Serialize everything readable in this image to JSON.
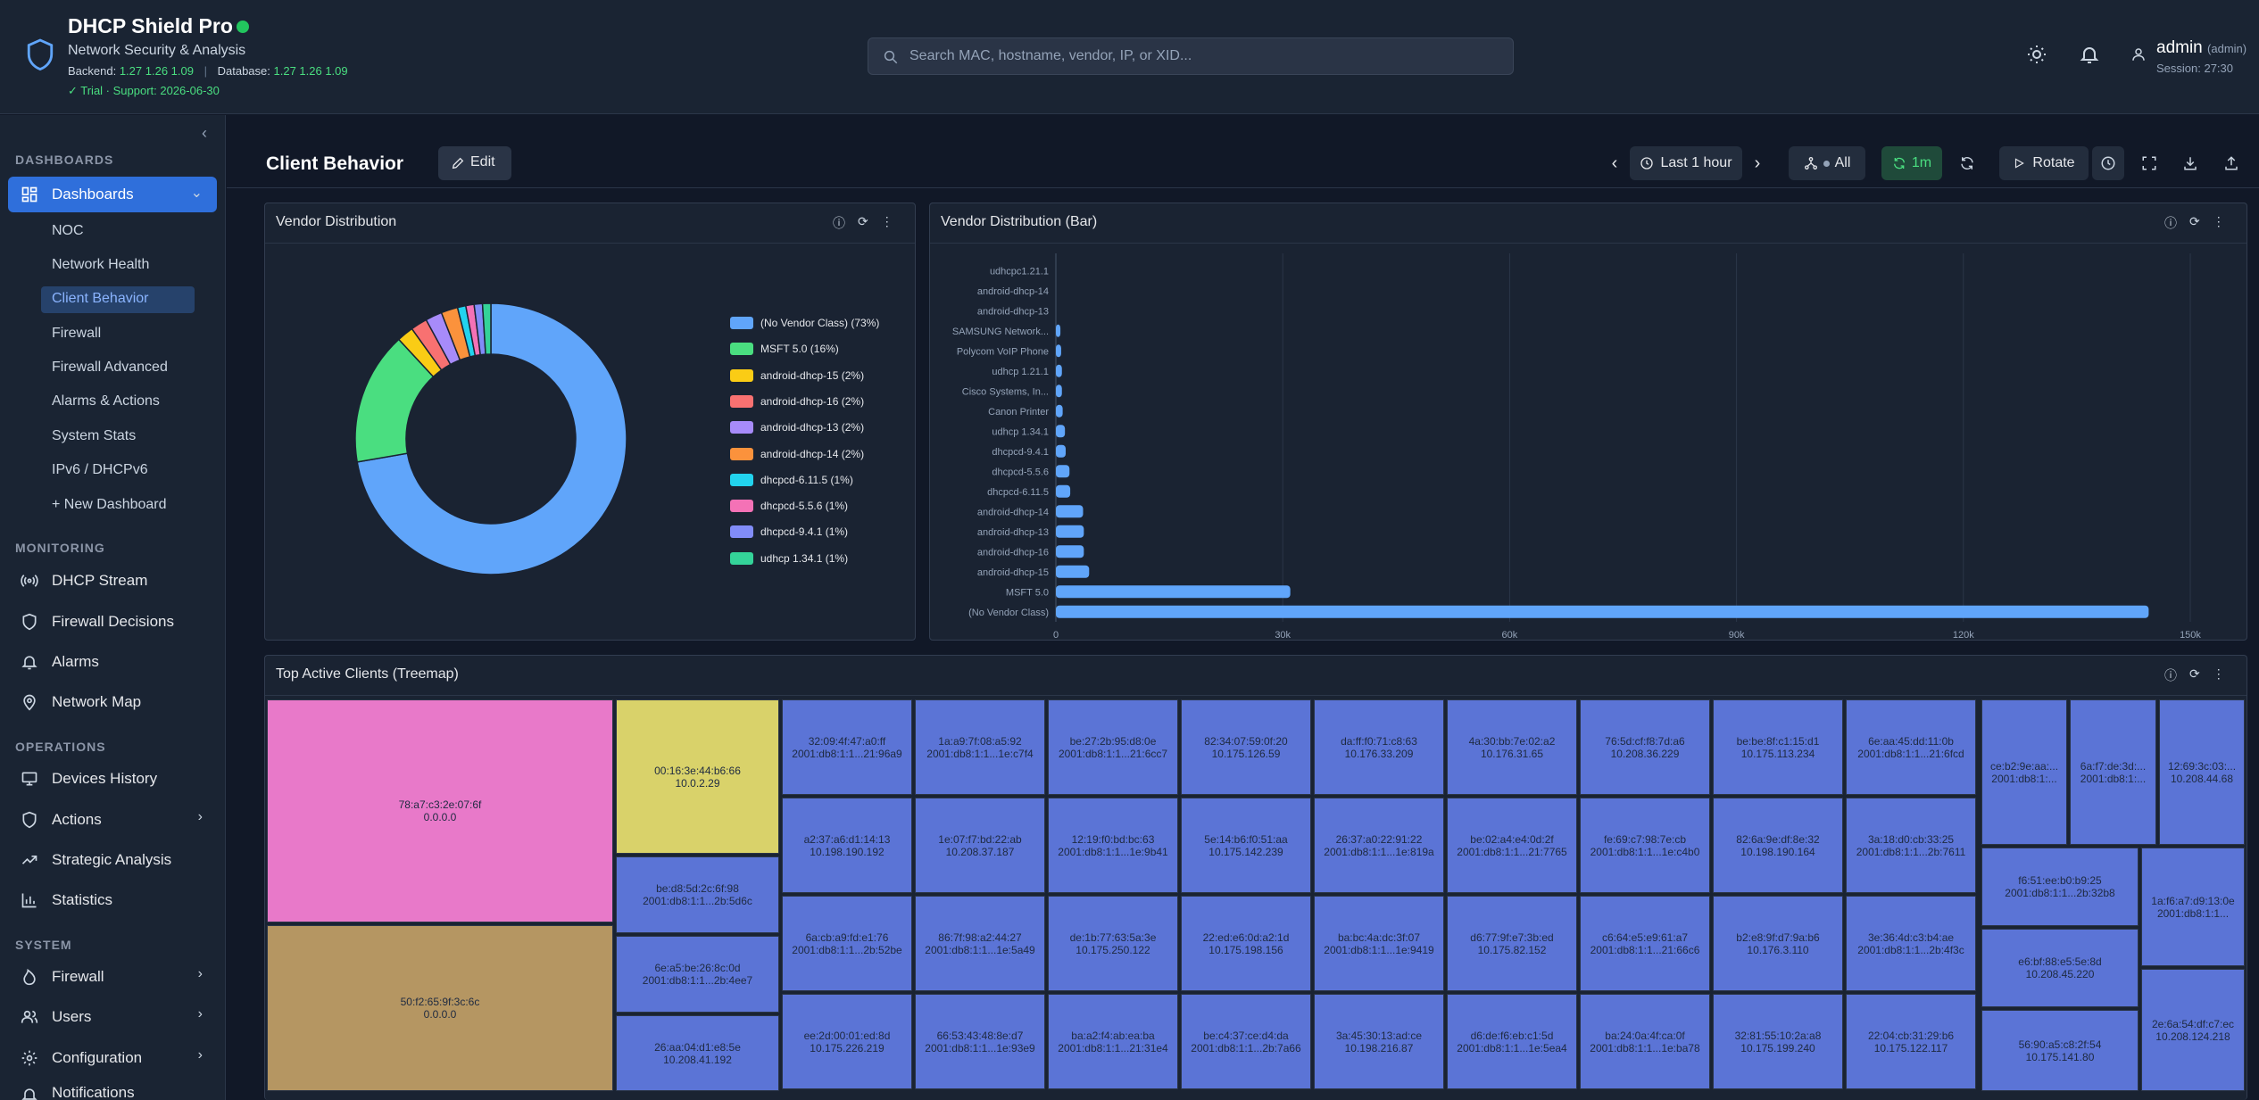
{
  "app": {
    "title": "DHCP Shield Pro",
    "subtitle": "Network Security & Analysis",
    "backend_label": "Backend:",
    "backend_version": "1.27 1.26 1.09",
    "database_label": "Database:",
    "database_version": "1.27 1.26 1.09",
    "trial": "✓ Trial · Support: 2026-06-30",
    "status_color": "#22c55e",
    "accent_color": "#2f6fdb"
  },
  "search": {
    "placeholder": "Search MAC, hostname, vendor, IP, or XID..."
  },
  "user": {
    "name": "admin",
    "role": "(admin)",
    "session": "Session: 27:30"
  },
  "sidebar": {
    "sections": {
      "dashboards": "DASHBOARDS",
      "monitoring": "MONITORING",
      "operations": "OPERATIONS",
      "system": "SYSTEM"
    },
    "dashboards_label": "Dashboards",
    "dashboards": [
      "NOC",
      "Network Health",
      "Client Behavior",
      "Firewall",
      "Firewall Advanced",
      "Alarms & Actions",
      "System Stats",
      "IPv6 / DHCPv6"
    ],
    "new_dashboard": "+  New Dashboard",
    "monitoring": [
      "DHCP Stream",
      "Firewall Decisions",
      "Alarms",
      "Network Map"
    ],
    "operations": [
      "Devices History",
      "Actions",
      "Strategic Analysis",
      "Statistics"
    ],
    "system": [
      "Firewall",
      "Users",
      "Configuration",
      "Notifications"
    ]
  },
  "header": {
    "title": "Client Behavior",
    "edit": "Edit",
    "time_range": "Last 1 hour",
    "filter": "All",
    "refresh_interval": "1m",
    "rotate": "Rotate"
  },
  "panels": {
    "pie_title": "Vendor Distribution",
    "bar_title": "Vendor Distribution (Bar)",
    "treemap_title": "Top Active Clients (Treemap)"
  },
  "chart_data": [
    {
      "type": "pie",
      "title": "Vendor Distribution",
      "donut": true,
      "legend_placement": "right",
      "slices": [
        {
          "label": "(No Vendor Class) (73%)",
          "value": 73,
          "color": "#60a5fa"
        },
        {
          "label": "MSFT 5.0 (16%)",
          "value": 16,
          "color": "#4ade80"
        },
        {
          "label": "android-dhcp-15 (2%)",
          "value": 2,
          "color": "#facc15"
        },
        {
          "label": "android-dhcp-16 (2%)",
          "value": 2,
          "color": "#f87171"
        },
        {
          "label": "android-dhcp-13 (2%)",
          "value": 2,
          "color": "#a78bfa"
        },
        {
          "label": "android-dhcp-14 (2%)",
          "value": 2,
          "color": "#fb923c"
        },
        {
          "label": "dhcpcd-6.11.5 (1%)",
          "value": 1,
          "color": "#22d3ee"
        },
        {
          "label": "dhcpcd-5.5.6 (1%)",
          "value": 1,
          "color": "#f472b6"
        },
        {
          "label": "dhcpcd-9.4.1 (1%)",
          "value": 1,
          "color": "#818cf8"
        },
        {
          "label": "udhcp 1.34.1 (1%)",
          "value": 1,
          "color": "#34d399"
        }
      ]
    },
    {
      "type": "bar",
      "orientation": "horizontal",
      "title": "Vendor Distribution (Bar)",
      "grid": true,
      "xlim": [
        0,
        150000
      ],
      "x_ticks": [
        "0",
        "30k",
        "60k",
        "90k",
        "120k",
        "150k"
      ],
      "bar_color": "#60a5fa",
      "categories": [
        "udhcpc1.21.1",
        "android-dhcp-14",
        "android-dhcp-13",
        "SAMSUNG Network...",
        "Polycom VoIP Phone",
        "udhcp 1.21.1",
        "Cisco Systems, In...",
        "Canon Printer",
        "udhcp 1.34.1",
        "dhcpcd-9.4.1",
        "dhcpcd-5.5.6",
        "dhcpcd-6.11.5",
        "android-dhcp-14",
        "android-dhcp-13",
        "android-dhcp-16",
        "android-dhcp-15",
        "MSFT 5.0",
        "(No Vendor Class)"
      ],
      "values": [
        0,
        0,
        0,
        600,
        700,
        800,
        800,
        900,
        1200,
        1300,
        1800,
        1900,
        3600,
        3700,
        3700,
        4400,
        31000,
        144500
      ]
    },
    {
      "type": "treemap",
      "title": "Top Active Clients (Treemap)",
      "items": [
        {
          "mac": "78:a7:c3:2e:07:6f",
          "ip": "0.0.0.0",
          "color": "#e879c9"
        },
        {
          "mac": "50:f2:65:9f:3c:6c",
          "ip": "0.0.0.0",
          "color": "#b59662"
        },
        {
          "mac": "00:16:3e:44:b6:66",
          "ip": "10.0.2.29",
          "color": "#d9d26a"
        },
        {
          "mac": "be:d8:5d:2c:6f:98",
          "ip": "2001:db8:1:1...2b:5d6c",
          "color": "#5b74d6"
        },
        {
          "mac": "6e:a5:be:26:8c:0d",
          "ip": "2001:db8:1:1...2b:4ee7",
          "color": "#5b74d6"
        },
        {
          "mac": "26:aa:04:d1:e8:5e",
          "ip": "10.208.41.192",
          "color": "#5b74d6"
        },
        {
          "mac": "32:09:4f:47:a0:ff",
          "ip": "2001:db8:1:1...21:96a9",
          "color": "#5b74d6"
        },
        {
          "mac": "1a:a9:7f:08:a5:92",
          "ip": "2001:db8:1:1...1e:c7f4",
          "color": "#5b74d6"
        },
        {
          "mac": "be:27:2b:95:d8:0e",
          "ip": "2001:db8:1:1...21:6cc7",
          "color": "#5b74d6"
        },
        {
          "mac": "82:34:07:59:0f:20",
          "ip": "10.175.126.59",
          "color": "#5b74d6"
        },
        {
          "mac": "da:ff:f0:71:c8:63",
          "ip": "10.176.33.209",
          "color": "#5b74d6"
        },
        {
          "mac": "4a:30:bb:7e:02:a2",
          "ip": "10.176.31.65",
          "color": "#5b74d6"
        },
        {
          "mac": "76:5d:cf:f8:7d:a6",
          "ip": "10.208.36.229",
          "color": "#5b74d6"
        },
        {
          "mac": "be:be:8f:c1:15:d1",
          "ip": "10.175.113.234",
          "color": "#5b74d6"
        },
        {
          "mac": "6e:aa:45:dd:11:0b",
          "ip": "2001:db8:1:1...21:6fcd",
          "color": "#5b74d6"
        },
        {
          "mac": "a2:37:a6:d1:14:13",
          "ip": "10.198.190.192",
          "color": "#5b74d6"
        },
        {
          "mac": "1e:07:f7:bd:22:ab",
          "ip": "10.208.37.187",
          "color": "#5b74d6"
        },
        {
          "mac": "12:19:f0:bd:bc:63",
          "ip": "2001:db8:1:1...1e:9b41",
          "color": "#5b74d6"
        },
        {
          "mac": "5e:14:b6:f0:51:aa",
          "ip": "10.175.142.239",
          "color": "#5b74d6"
        },
        {
          "mac": "26:37:a0:22:91:22",
          "ip": "2001:db8:1:1...1e:819a",
          "color": "#5b74d6"
        },
        {
          "mac": "be:02:a4:e4:0d:2f",
          "ip": "2001:db8:1:1...21:7765",
          "color": "#5b74d6"
        },
        {
          "mac": "fe:69:c7:98:7e:cb",
          "ip": "2001:db8:1:1...1e:c4b0",
          "color": "#5b74d6"
        },
        {
          "mac": "82:6a:9e:df:8e:32",
          "ip": "10.198.190.164",
          "color": "#5b74d6"
        },
        {
          "mac": "3a:18:d0:cb:33:25",
          "ip": "2001:db8:1:1...2b:7611",
          "color": "#5b74d6"
        },
        {
          "mac": "6a:cb:a9:fd:e1:76",
          "ip": "2001:db8:1:1...2b:52be",
          "color": "#5b74d6"
        },
        {
          "mac": "86:7f:98:a2:44:27",
          "ip": "2001:db8:1:1...1e:5a49",
          "color": "#5b74d6"
        },
        {
          "mac": "de:1b:77:63:5a:3e",
          "ip": "10.175.250.122",
          "color": "#5b74d6"
        },
        {
          "mac": "22:ed:e6:0d:a2:1d",
          "ip": "10.175.198.156",
          "color": "#5b74d6"
        },
        {
          "mac": "ba:bc:4a:dc:3f:07",
          "ip": "2001:db8:1:1...1e:9419",
          "color": "#5b74d6"
        },
        {
          "mac": "d6:77:9f:e7:3b:ed",
          "ip": "10.175.82.152",
          "color": "#5b74d6"
        },
        {
          "mac": "c6:64:e5:e9:61:a7",
          "ip": "2001:db8:1:1...21:66c6",
          "color": "#5b74d6"
        },
        {
          "mac": "b2:e8:9f:d7:9a:b6",
          "ip": "10.176.3.110",
          "color": "#5b74d6"
        },
        {
          "mac": "3e:36:4d:c3:b4:ae",
          "ip": "2001:db8:1:1...2b:4f3c",
          "color": "#5b74d6"
        },
        {
          "mac": "ee:2d:00:01:ed:8d",
          "ip": "10.175.226.219",
          "color": "#5b74d6"
        },
        {
          "mac": "66:53:43:48:8e:d7",
          "ip": "2001:db8:1:1...1e:93e9",
          "color": "#5b74d6"
        },
        {
          "mac": "ba:a2:f4:ab:ea:ba",
          "ip": "2001:db8:1:1...21:31e4",
          "color": "#5b74d6"
        },
        {
          "mac": "be:c4:37:ce:d4:da",
          "ip": "2001:db8:1:1...2b:7a66",
          "color": "#5b74d6"
        },
        {
          "mac": "3a:45:30:13:ad:ce",
          "ip": "10.198.216.87",
          "color": "#5b74d6"
        },
        {
          "mac": "d6:de:f6:eb:c1:5d",
          "ip": "2001:db8:1:1...1e:5ea4",
          "color": "#5b74d6"
        },
        {
          "mac": "ba:24:0a:4f:ca:0f",
          "ip": "2001:db8:1:1...1e:ba78",
          "color": "#5b74d6"
        },
        {
          "mac": "32:81:55:10:2a:a8",
          "ip": "10.175.199.240",
          "color": "#5b74d6"
        },
        {
          "mac": "22:04:cb:31:29:b6",
          "ip": "10.175.122.117",
          "color": "#5b74d6"
        },
        {
          "mac": "ce:b2:9e:aa:...",
          "ip": "2001:db8:1:...",
          "color": "#5b74d6"
        },
        {
          "mac": "6a:f7:de:3d:...",
          "ip": "2001:db8:1:...",
          "color": "#5b74d6"
        },
        {
          "mac": "12:69:3c:03:...",
          "ip": "10.208.44.68",
          "color": "#5b74d6"
        },
        {
          "mac": "f6:51:ee:b0:b9:25",
          "ip": "2001:db8:1:1...2b:32b8",
          "color": "#5b74d6"
        },
        {
          "mac": "1a:f6:a7:d9:13:0e",
          "ip": "2001:db8:1:1...",
          "color": "#5b74d6"
        },
        {
          "mac": "e6:bf:88:e5:5e:8d",
          "ip": "10.208.45.220",
          "color": "#5b74d6"
        },
        {
          "mac": "2e:6a:54:df:c7:ec",
          "ip": "10.208.124.218",
          "color": "#5b74d6"
        },
        {
          "mac": "56:90:a5:c8:2f:54",
          "ip": "10.175.141.80",
          "color": "#5b74d6"
        }
      ]
    }
  ]
}
